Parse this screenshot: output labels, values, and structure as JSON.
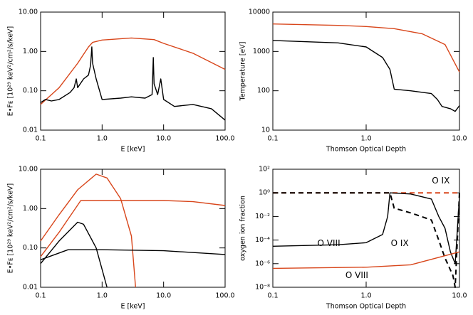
{
  "chart_data": [
    {
      "type": "line",
      "xlog": true,
      "ylog": true,
      "xlabel": "E [keV]",
      "ylabel": "E•Fᴇ [10²⁹ keV²/cm²/s/keV]",
      "xlim": [
        0.1,
        100
      ],
      "xticks": [
        0.1,
        {
          "value": 1,
          "label": "1.0"
        },
        {
          "value": 10,
          "label": "10.0"
        },
        {
          "value": 100,
          "label": "100.0"
        }
      ],
      "ylim": [
        0.01,
        10
      ],
      "yticks": [
        0.01,
        {
          "value": 0.1,
          "label": "0.10"
        },
        {
          "value": 1,
          "label": "1.00"
        },
        {
          "value": 10,
          "label": "10.00"
        }
      ],
      "series": [
        {
          "color": "#d8461b",
          "x": [
            0.1,
            0.2,
            0.4,
            0.6,
            0.7,
            1,
            3,
            7,
            10,
            30,
            100
          ],
          "values": [
            0.045,
            0.12,
            0.5,
            1.3,
            1.7,
            1.95,
            2.2,
            2.0,
            1.6,
            0.9,
            0.35
          ]
        },
        {
          "color": "#000000",
          "x": [
            0.1,
            0.12,
            0.15,
            0.2,
            0.3,
            0.35,
            0.38,
            0.4,
            0.5,
            0.6,
            0.65,
            0.68,
            0.7,
            0.8,
            1.0,
            2,
            3,
            5,
            6.5,
            6.8,
            7,
            8,
            9,
            10,
            15,
            30,
            60,
            100
          ],
          "values": [
            0.05,
            0.06,
            0.055,
            0.06,
            0.09,
            0.12,
            0.2,
            0.12,
            0.2,
            0.25,
            0.45,
            1.3,
            0.5,
            0.2,
            0.06,
            0.065,
            0.07,
            0.065,
            0.08,
            0.7,
            0.15,
            0.08,
            0.2,
            0.06,
            0.04,
            0.045,
            0.035,
            0.018
          ]
        }
      ]
    },
    {
      "type": "line",
      "xlog": true,
      "ylog": true,
      "xlabel": "Thomson Optical Depth",
      "ylabel": "Temperature [eV]",
      "xlim": [
        0.1,
        10
      ],
      "xticks": [
        0.1,
        {
          "value": 1,
          "label": "1.0"
        },
        {
          "value": 10,
          "label": "10.0"
        }
      ],
      "ylim": [
        10,
        10000
      ],
      "yticks": [
        10,
        100,
        1000,
        10000
      ],
      "series": [
        {
          "color": "#d8461b",
          "x": [
            0.1,
            0.5,
            1,
            2,
            4,
            7,
            10
          ],
          "values": [
            5000,
            4600,
            4300,
            3800,
            2800,
            1500,
            300
          ]
        },
        {
          "color": "#000000",
          "x": [
            0.1,
            0.5,
            1,
            1.5,
            1.8,
            2,
            3,
            5,
            5.8,
            6.5,
            8,
            9,
            10
          ],
          "values": [
            1900,
            1650,
            1300,
            700,
            350,
            110,
            100,
            85,
            60,
            40,
            35,
            30,
            42
          ]
        }
      ]
    },
    {
      "type": "line",
      "xlog": true,
      "ylog": true,
      "xlabel": "E [keV]",
      "ylabel": "E•Fᴇ [10²⁹ keV²/cm²/s/keV]",
      "xlim": [
        0.1,
        100
      ],
      "xticks": [
        0.1,
        {
          "value": 1,
          "label": "1.0"
        },
        {
          "value": 10,
          "label": "10.0"
        },
        {
          "value": 100,
          "label": "100.0"
        }
      ],
      "ylim": [
        0.01,
        10
      ],
      "yticks": [
        0.01,
        {
          "value": 0.1,
          "label": "0.10"
        },
        {
          "value": 1,
          "label": "1.00"
        },
        {
          "value": 10,
          "label": "10.00"
        }
      ],
      "series": [
        {
          "color": "#d8461b",
          "x": [
            0.1,
            0.2,
            0.4,
            0.8,
            1.2,
            2,
            3,
            3.5
          ],
          "values": [
            0.15,
            0.7,
            3,
            7.5,
            6,
            1.8,
            0.2,
            0.01
          ]
        },
        {
          "color": "#d8461b",
          "x": [
            0.1,
            0.2,
            0.45,
            1,
            10,
            30,
            100
          ],
          "values": [
            0.06,
            0.25,
            1.6,
            1.6,
            1.6,
            1.5,
            1.2
          ]
        },
        {
          "color": "#000000",
          "x": [
            0.1,
            0.2,
            0.4,
            0.5,
            0.8,
            1.2
          ],
          "values": [
            0.04,
            0.15,
            0.45,
            0.4,
            0.1,
            0.01
          ]
        },
        {
          "color": "#000000",
          "x": [
            0.1,
            0.28,
            1,
            10,
            100
          ],
          "values": [
            0.05,
            0.09,
            0.09,
            0.085,
            0.068
          ]
        }
      ]
    },
    {
      "type": "line",
      "xlog": true,
      "ylog": true,
      "xlabel": "Thomson Optical Depth",
      "ylabel": "oxygen ion fraction",
      "xlim": [
        0.1,
        10
      ],
      "xticks": [
        0.1,
        {
          "value": 1,
          "label": "1.0"
        },
        {
          "value": 10,
          "label": "10.0"
        }
      ],
      "ylim": [
        1e-08,
        100
      ],
      "yticks": [
        {
          "value": 1e-08,
          "label": "10⁻⁸"
        },
        {
          "value": 1e-06,
          "label": "10⁻⁶"
        },
        {
          "value": 0.0001,
          "label": "10⁻⁴"
        },
        {
          "value": 0.01,
          "label": "10⁻²"
        },
        {
          "value": 1,
          "label": "10⁰"
        },
        {
          "value": 100,
          "label": "10²"
        }
      ],
      "series": [
        {
          "color": "#d8461b",
          "dash": true,
          "x": [
            0.1,
            10
          ],
          "values": [
            1,
            1
          ]
        },
        {
          "color": "#000000",
          "dash": true,
          "x": [
            0.1,
            1.8,
            2,
            3,
            5,
            6,
            7,
            8.5,
            9,
            10
          ],
          "values": [
            1,
            1,
            0.05,
            0.02,
            0.005,
            0.0001,
            3e-06,
            1e-07,
            1e-08,
            1
          ]
        },
        {
          "color": "#000000",
          "x": [
            0.1,
            0.5,
            1,
            1.5,
            1.7,
            1.8,
            3,
            5,
            6,
            7,
            8,
            9,
            10
          ],
          "values": [
            3e-05,
            4e-05,
            6e-05,
            0.0003,
            0.01,
            1,
            0.8,
            0.3,
            0.01,
            0.001,
            1e-05,
            1e-06,
            0.5
          ]
        },
        {
          "color": "#d8461b",
          "x": [
            0.1,
            1,
            3,
            10
          ],
          "values": [
            4e-07,
            5e-07,
            8e-07,
            1e-05
          ]
        }
      ],
      "annotations": [
        {
          "text": "O IX",
          "color": "#d8461b"
        },
        {
          "text": "O VIII",
          "color": "#000000"
        },
        {
          "text": "O IX",
          "color": "#000000"
        },
        {
          "text": "O VIII",
          "color": "#d8461b"
        }
      ]
    }
  ]
}
